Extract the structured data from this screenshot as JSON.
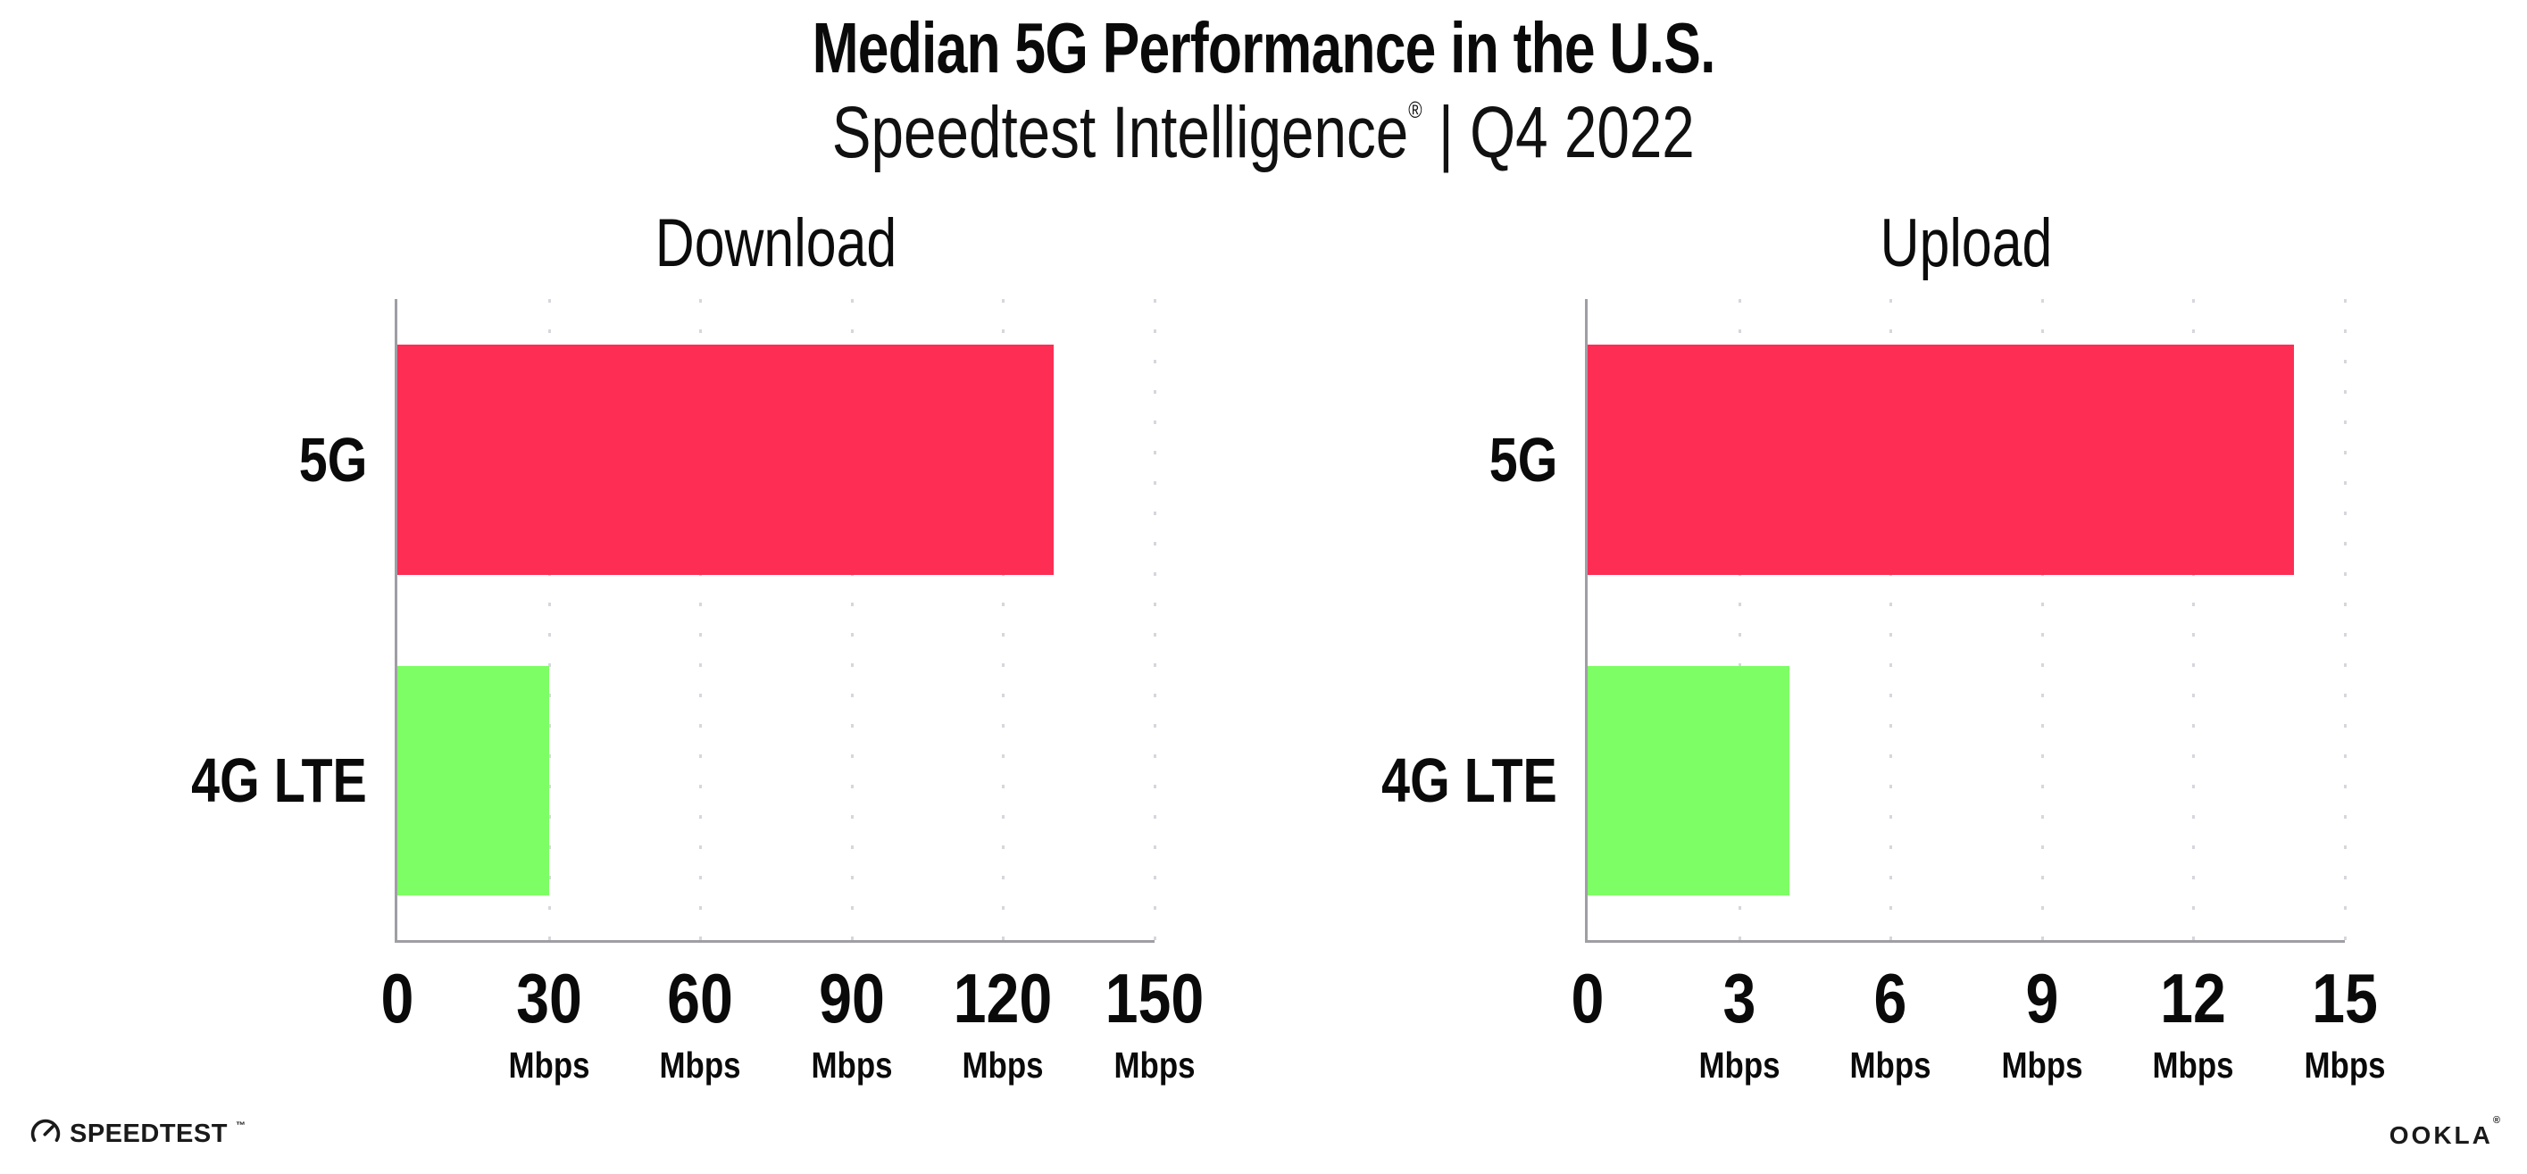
{
  "header": {
    "title": "Median 5G Performance in the U.S.",
    "subtitle": {
      "pre": "Speedtest Intelligence",
      "reg": "®",
      "post": " | Q4 2022"
    }
  },
  "chart_data": [
    {
      "type": "bar",
      "orientation": "horizontal",
      "title": "Download",
      "unit": "Mbps",
      "categories": [
        "5G",
        "4G LTE"
      ],
      "values": [
        130,
        30
      ],
      "xlim": [
        0,
        150
      ],
      "xticks": [
        0,
        30,
        60,
        90,
        120,
        150
      ],
      "bar_colors": [
        "#FD2D54",
        "#7EFE65"
      ],
      "axis_color": "#9E9EA4",
      "gridline_color": "#D6D6DD",
      "grid": "dotted-vertical",
      "legend": "none"
    },
    {
      "type": "bar",
      "orientation": "horizontal",
      "title": "Upload",
      "unit": "Mbps",
      "categories": [
        "5G",
        "4G LTE"
      ],
      "values": [
        14,
        4
      ],
      "xlim": [
        0,
        15
      ],
      "xticks": [
        0,
        3,
        6,
        9,
        12,
        15
      ],
      "bar_colors": [
        "#FD2D54",
        "#7EFE65"
      ],
      "axis_color": "#9E9EA4",
      "gridline_color": "#D6D6DD",
      "grid": "dotted-vertical",
      "legend": "none"
    }
  ],
  "footer": {
    "speedtest_logo": {
      "icon": "gauge-icon",
      "label": "SPEEDTEST",
      "mark": "™"
    },
    "ookla_logo": {
      "label": "OOKLA",
      "mark": "®"
    }
  }
}
